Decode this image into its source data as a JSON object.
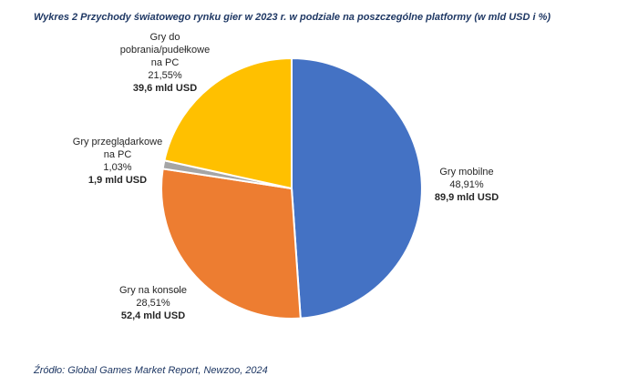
{
  "chart_data": {
    "type": "pie",
    "title": "Wykres 2 Przychody światowego rynku gier w 2023 r. w podziale na poszczególne platformy (w mld USD i %)",
    "source": "Źródło: Global Games Market Report, Newzoo, 2024",
    "slices": [
      {
        "name_lines": [
          "Gry mobilne"
        ],
        "percent_label": "48,91%",
        "value_label": "89,9 mld USD",
        "percent": 48.91,
        "value": 89.9,
        "color": "#4472c4"
      },
      {
        "name_lines": [
          "Gry na konsole"
        ],
        "percent_label": "28,51%",
        "value_label": "52,4 mld USD",
        "percent": 28.51,
        "value": 52.4,
        "color": "#ed7d31"
      },
      {
        "name_lines": [
          "Gry przeglądarkowe",
          "na PC"
        ],
        "percent_label": "1,03%",
        "value_label": "1,9 mld USD",
        "percent": 1.03,
        "value": 1.9,
        "color": "#a5a5a5"
      },
      {
        "name_lines": [
          "Gry do",
          "pobrania/pudełkowe",
          "na PC"
        ],
        "percent_label": "21,55%",
        "value_label": "39,6 mld USD",
        "percent": 21.55,
        "value": 39.6,
        "color": "#ffc000"
      }
    ]
  }
}
